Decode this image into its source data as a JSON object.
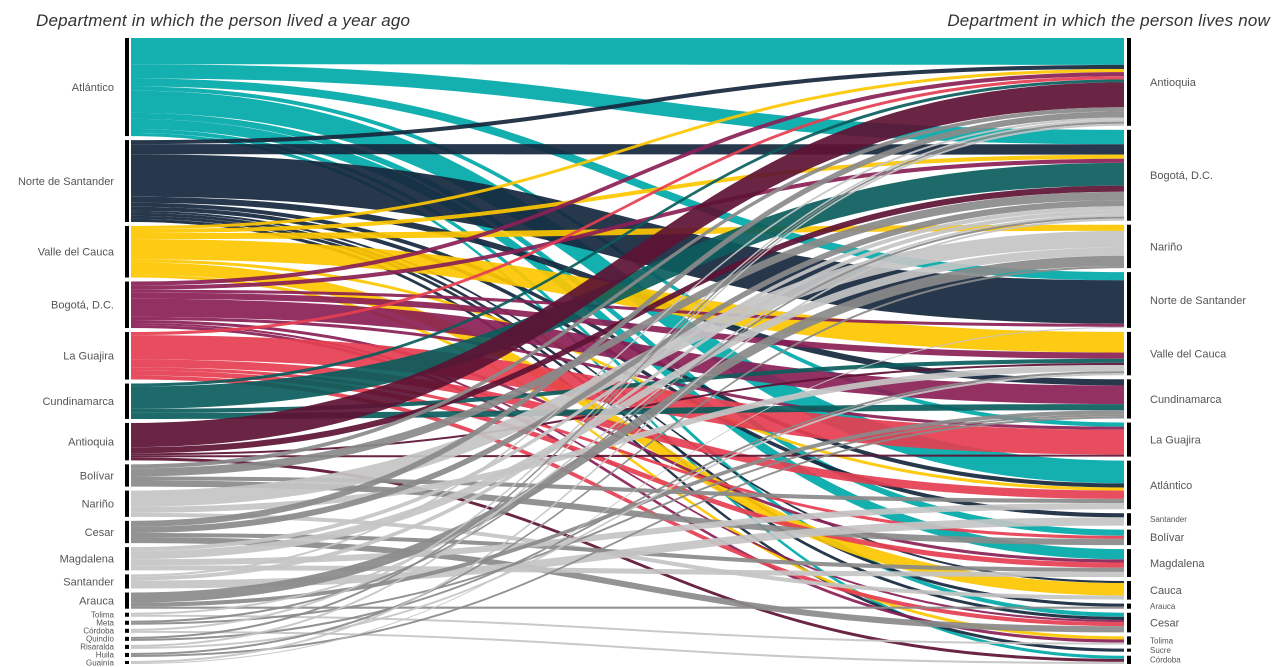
{
  "titles": {
    "left": "Department in which the person lived a year ago",
    "right": "Department in which the person lives now"
  },
  "colors": {
    "atlantico": "#00a8a8",
    "norte": "#16273d",
    "valle": "#fdc500",
    "bogota": "#8a1f56",
    "guajira": "#e53e50",
    "cundinamarca": "#0b5c5c",
    "antioquia": "#5c1233",
    "grey_dark": "#8a8a8a",
    "grey_light": "#c4c4c4"
  },
  "chart_data": {
    "type": "sankey",
    "left_nodes": [
      {
        "id": "L-atl",
        "label": "Atlántico",
        "color": "atlantico"
      },
      {
        "id": "L-nds",
        "label": "Norte de Santander",
        "color": "norte"
      },
      {
        "id": "L-val",
        "label": "Valle del Cauca",
        "color": "valle"
      },
      {
        "id": "L-bog",
        "label": "Bogotá, D.C.",
        "color": "bogota"
      },
      {
        "id": "L-gua",
        "label": "La Guajira",
        "color": "guajira"
      },
      {
        "id": "L-cun",
        "label": "Cundinamarca",
        "color": "cundinamarca"
      },
      {
        "id": "L-ant",
        "label": "Antioquia",
        "color": "antioquia"
      },
      {
        "id": "L-bol",
        "label": "Bolívar",
        "color": "grey_dark"
      },
      {
        "id": "L-nar",
        "label": "Nariño",
        "color": "grey_light"
      },
      {
        "id": "L-ces",
        "label": "Cesar",
        "color": "grey_dark"
      },
      {
        "id": "L-mag",
        "label": "Magdalena",
        "color": "grey_light"
      },
      {
        "id": "L-san",
        "label": "Santander",
        "color": "grey_light"
      },
      {
        "id": "L-ara",
        "label": "Arauca",
        "color": "grey_dark"
      },
      {
        "id": "L-tol",
        "label": "Tolima",
        "color": "grey_light"
      },
      {
        "id": "L-met",
        "label": "Meta",
        "color": "grey_dark"
      },
      {
        "id": "L-cor",
        "label": "Córdoba",
        "color": "grey_light"
      },
      {
        "id": "L-qui",
        "label": "Quindío",
        "color": "grey_dark"
      },
      {
        "id": "L-ris",
        "label": "Risaralda",
        "color": "grey_light"
      },
      {
        "id": "L-hui",
        "label": "Huila",
        "color": "grey_dark"
      },
      {
        "id": "L-guai",
        "label": "Guainía",
        "color": "grey_light"
      }
    ],
    "right_nodes": [
      {
        "id": "R-ant",
        "label": "Antioquia"
      },
      {
        "id": "R-bog",
        "label": "Bogotá, D.C."
      },
      {
        "id": "R-nar",
        "label": "Nariño"
      },
      {
        "id": "R-nds",
        "label": "Norte de Santander"
      },
      {
        "id": "R-val",
        "label": "Valle del Cauca"
      },
      {
        "id": "R-cun",
        "label": "Cundinamarca"
      },
      {
        "id": "R-gua",
        "label": "La Guajira"
      },
      {
        "id": "R-atl",
        "label": "Atlántico"
      },
      {
        "id": "R-san",
        "label": "Santander"
      },
      {
        "id": "R-bol",
        "label": "Bolívar"
      },
      {
        "id": "R-mag",
        "label": "Magdalena"
      },
      {
        "id": "R-cau",
        "label": "Cauca"
      },
      {
        "id": "R-ara",
        "label": "Arauca"
      },
      {
        "id": "R-ces",
        "label": "Cesar"
      },
      {
        "id": "R-tol",
        "label": "Tolima"
      },
      {
        "id": "R-suc",
        "label": "Sucre"
      },
      {
        "id": "R-cor",
        "label": "Córdoba"
      }
    ],
    "flows": [
      [
        "L-atl",
        "R-ant",
        26
      ],
      [
        "L-atl",
        "R-bog",
        14
      ],
      [
        "L-atl",
        "R-nds",
        8
      ],
      [
        "L-atl",
        "R-atl",
        22
      ],
      [
        "L-atl",
        "R-mag",
        10
      ],
      [
        "L-atl",
        "R-bol",
        6
      ],
      [
        "L-atl",
        "R-gua",
        4
      ],
      [
        "L-atl",
        "R-ces",
        4
      ],
      [
        "L-atl",
        "R-cor",
        3
      ],
      [
        "L-nds",
        "R-ant",
        4
      ],
      [
        "L-nds",
        "R-bog",
        10
      ],
      [
        "L-nds",
        "R-nds",
        42
      ],
      [
        "L-nds",
        "R-cun",
        6
      ],
      [
        "L-nds",
        "R-san",
        4
      ],
      [
        "L-nds",
        "R-ara",
        3
      ],
      [
        "L-nds",
        "R-ces",
        3
      ],
      [
        "L-nds",
        "R-suc",
        3
      ],
      [
        "L-nds",
        "R-atl",
        4
      ],
      [
        "L-nds",
        "R-cau",
        2
      ],
      [
        "L-val",
        "R-ant",
        3
      ],
      [
        "L-val",
        "R-bog",
        4
      ],
      [
        "L-val",
        "R-val",
        20
      ],
      [
        "L-val",
        "R-nar",
        6
      ],
      [
        "L-val",
        "R-cau",
        12
      ],
      [
        "L-val",
        "R-tol",
        3
      ],
      [
        "L-val",
        "R-atl",
        3
      ],
      [
        "L-bog",
        "R-ant",
        4
      ],
      [
        "L-bog",
        "R-bog",
        4
      ],
      [
        "L-bog",
        "R-cun",
        18
      ],
      [
        "L-bog",
        "R-val",
        6
      ],
      [
        "L-bog",
        "R-gua",
        3
      ],
      [
        "L-bog",
        "R-tol",
        3
      ],
      [
        "L-bog",
        "R-mag",
        3
      ],
      [
        "L-bog",
        "R-nds",
        3
      ],
      [
        "L-bog",
        "R-ces",
        2
      ],
      [
        "L-gua",
        "R-gua",
        24
      ],
      [
        "L-gua",
        "R-atl",
        8
      ],
      [
        "L-gua",
        "R-mag",
        5
      ],
      [
        "L-gua",
        "R-ces",
        4
      ],
      [
        "L-gua",
        "R-ant",
        3
      ],
      [
        "L-gua",
        "R-bol",
        3
      ],
      [
        "L-cun",
        "R-bog",
        22
      ],
      [
        "L-cun",
        "R-cun",
        6
      ],
      [
        "L-cun",
        "R-ant",
        3
      ],
      [
        "L-cun",
        "R-val",
        4
      ],
      [
        "L-ant",
        "R-ant",
        24
      ],
      [
        "L-ant",
        "R-bog",
        6
      ],
      [
        "L-ant",
        "R-cor",
        3
      ],
      [
        "L-ant",
        "R-gua",
        2
      ],
      [
        "L-ant",
        "R-val",
        2
      ],
      [
        "L-bol",
        "R-bog",
        8
      ],
      [
        "L-bol",
        "R-bol",
        6
      ],
      [
        "L-bol",
        "R-atl",
        4
      ],
      [
        "L-bol",
        "R-ant",
        4
      ],
      [
        "L-nar",
        "R-nar",
        16
      ],
      [
        "L-nar",
        "R-val",
        6
      ],
      [
        "L-nar",
        "R-cau",
        4
      ],
      [
        "L-ces",
        "R-ces",
        6
      ],
      [
        "L-ces",
        "R-ant",
        6
      ],
      [
        "L-ces",
        "R-bog",
        6
      ],
      [
        "L-ces",
        "R-mag",
        4
      ],
      [
        "L-mag",
        "R-nar",
        8
      ],
      [
        "L-mag",
        "R-atl",
        6
      ],
      [
        "L-mag",
        "R-mag",
        5
      ],
      [
        "L-mag",
        "R-bog",
        4
      ],
      [
        "L-san",
        "R-san",
        8
      ],
      [
        "L-san",
        "R-bog",
        4
      ],
      [
        "L-san",
        "R-ant",
        2
      ],
      [
        "L-ara",
        "R-nar",
        10
      ],
      [
        "L-ara",
        "R-cun",
        4
      ],
      [
        "L-ara",
        "R-ara",
        2
      ],
      [
        "L-tol",
        "R-tol",
        2
      ],
      [
        "L-tol",
        "R-bog",
        2
      ],
      [
        "L-met",
        "R-bog",
        2
      ],
      [
        "L-met",
        "R-cun",
        2
      ],
      [
        "L-cor",
        "R-cor",
        2
      ],
      [
        "L-cor",
        "R-ant",
        2
      ],
      [
        "L-qui",
        "R-val",
        2
      ],
      [
        "L-qui",
        "R-ant",
        2
      ],
      [
        "L-ris",
        "R-ant",
        2
      ],
      [
        "L-ris",
        "R-val",
        2
      ],
      [
        "L-hui",
        "R-nar",
        2
      ],
      [
        "L-hui",
        "R-cun",
        2
      ],
      [
        "L-guai",
        "R-bog",
        2
      ],
      [
        "L-guai",
        "R-nds",
        1
      ]
    ]
  }
}
